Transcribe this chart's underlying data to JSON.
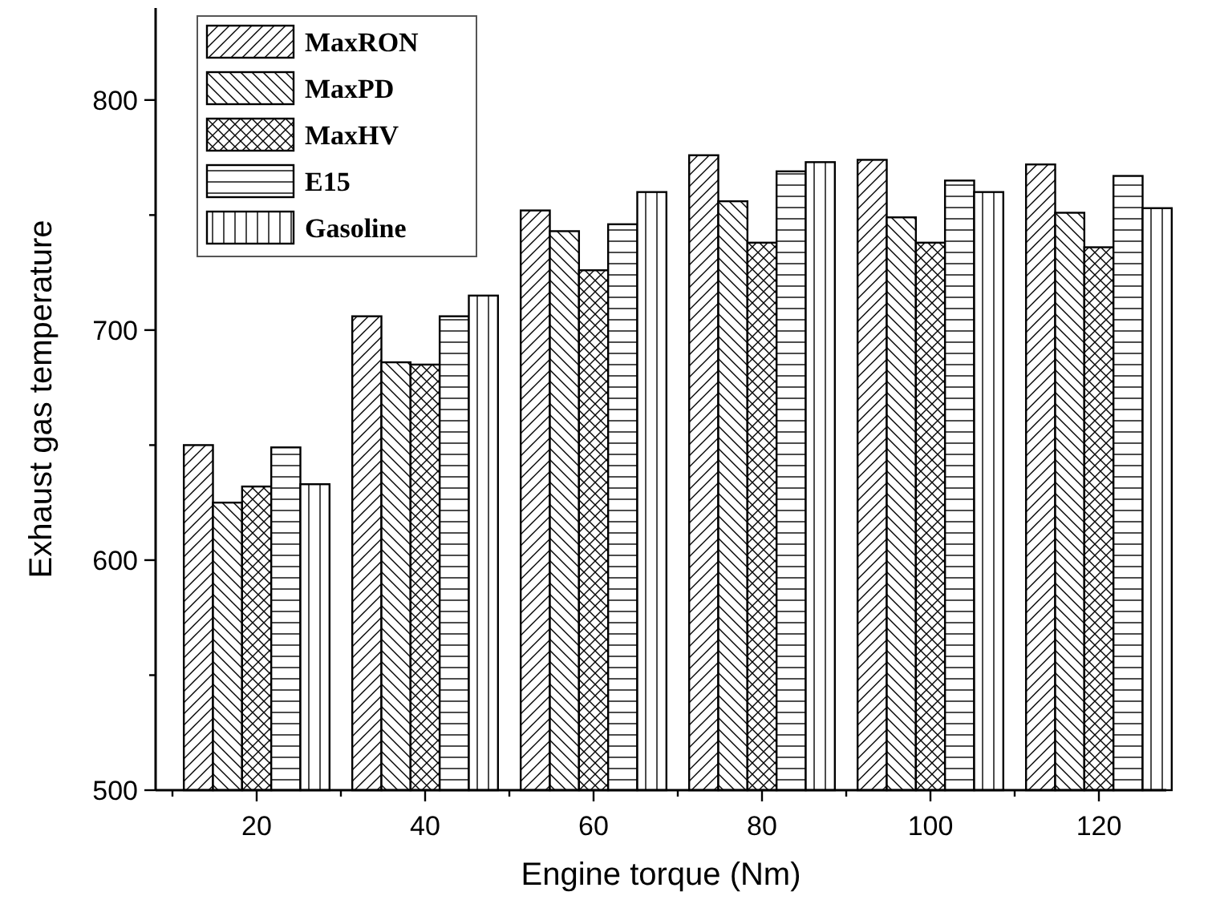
{
  "chart_data": {
    "type": "bar",
    "xlabel": "Engine torque (Nm)",
    "ylabel": "Exhaust gas temperature",
    "x": [
      20,
      40,
      60,
      80,
      100,
      120
    ],
    "series": [
      {
        "name": "MaxRON",
        "color": "#000000",
        "values": [
          650,
          706,
          752,
          776,
          774,
          772
        ]
      },
      {
        "name": "MaxPD",
        "color": "#000000",
        "values": [
          625,
          686,
          743,
          756,
          749,
          751
        ]
      },
      {
        "name": "MaxHV",
        "color": "#000000",
        "values": [
          632,
          685,
          726,
          738,
          738,
          736
        ]
      },
      {
        "name": "E15",
        "color": "#000000",
        "values": [
          649,
          706,
          746,
          769,
          765,
          767
        ]
      },
      {
        "name": "Gasoline",
        "color": "#000000",
        "values": [
          633,
          715,
          760,
          773,
          760,
          753
        ]
      }
    ],
    "xlim": [
      8,
      128
    ],
    "xticks": [
      {
        "value": 10,
        "label": null
      },
      20,
      {
        "value": 30,
        "label": null
      },
      40,
      {
        "value": 50,
        "label": null
      },
      60,
      {
        "value": 70,
        "label": null
      },
      80,
      {
        "value": 90,
        "label": null
      },
      100,
      {
        "value": 110,
        "label": null
      },
      120
    ],
    "ylim": [
      500,
      840
    ],
    "yticks": [
      500,
      {
        "value": 550,
        "label": null
      },
      600,
      {
        "value": 650,
        "label": null
      },
      700,
      {
        "value": 750,
        "label": null
      },
      800
    ],
    "grid": false,
    "legend": "top left"
  }
}
